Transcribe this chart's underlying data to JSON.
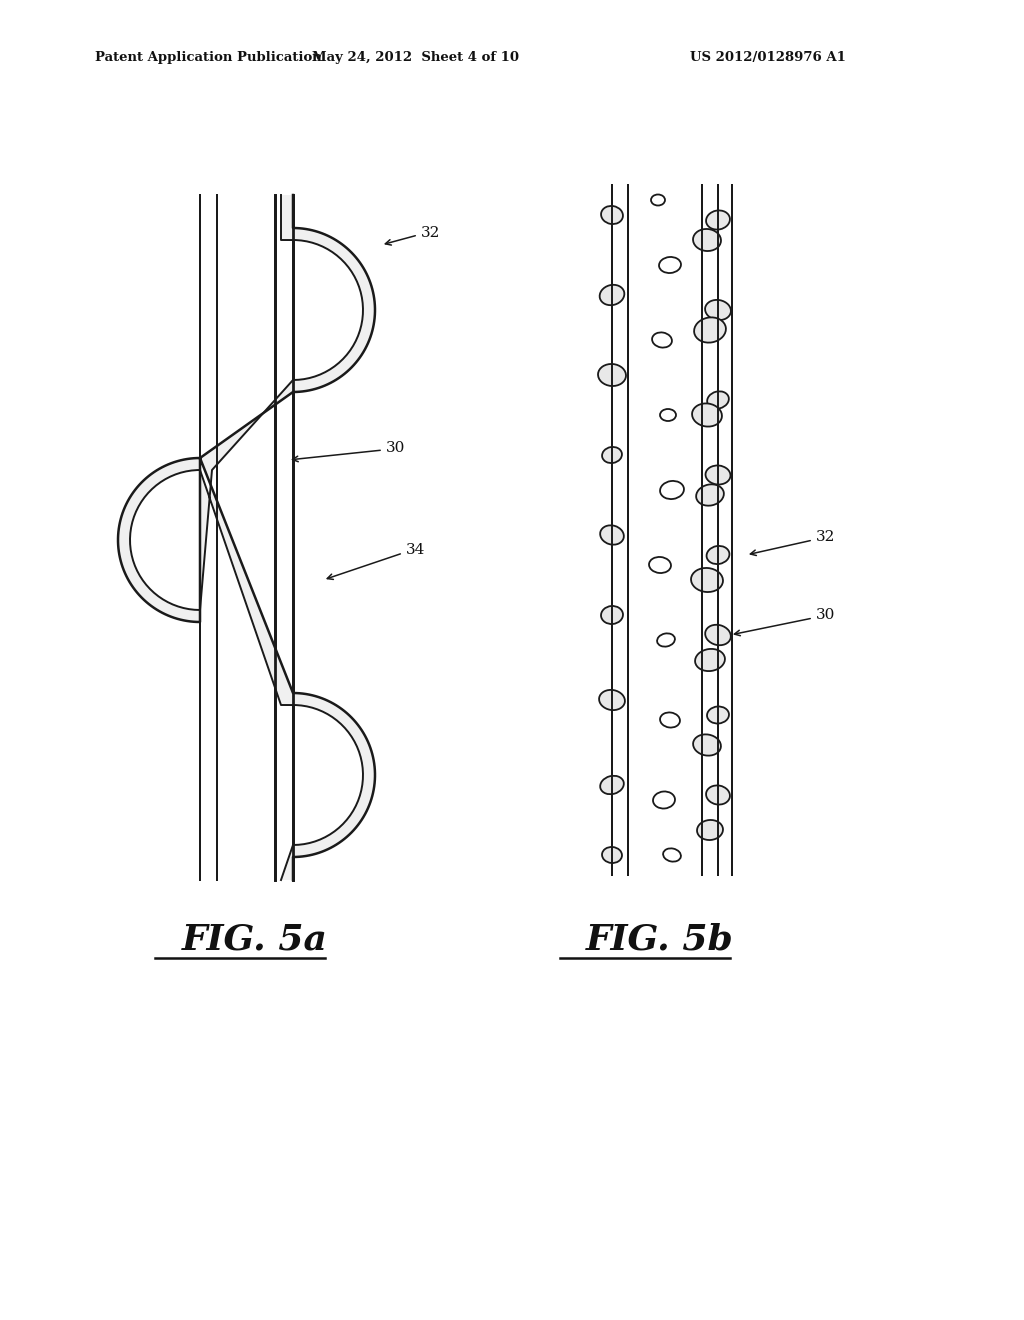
{
  "background_color": "#ffffff",
  "header_left": "Patent Application Publication",
  "header_mid": "May 24, 2012  Sheet 4 of 10",
  "header_right": "US 2012/0128976 A1",
  "fig5a_label": "FIG. 5a",
  "fig5b_label": "FIG. 5b",
  "label_32_left": "32",
  "label_30_left": "30",
  "label_34_left": "34",
  "label_32_right": "32",
  "label_30_right": "30",
  "color_line": "#1a1a1a",
  "color_bg": "#ffffff",
  "color_ribbon_fill": "#f0f0f0",
  "color_blob_fill": "#e8e8e8"
}
